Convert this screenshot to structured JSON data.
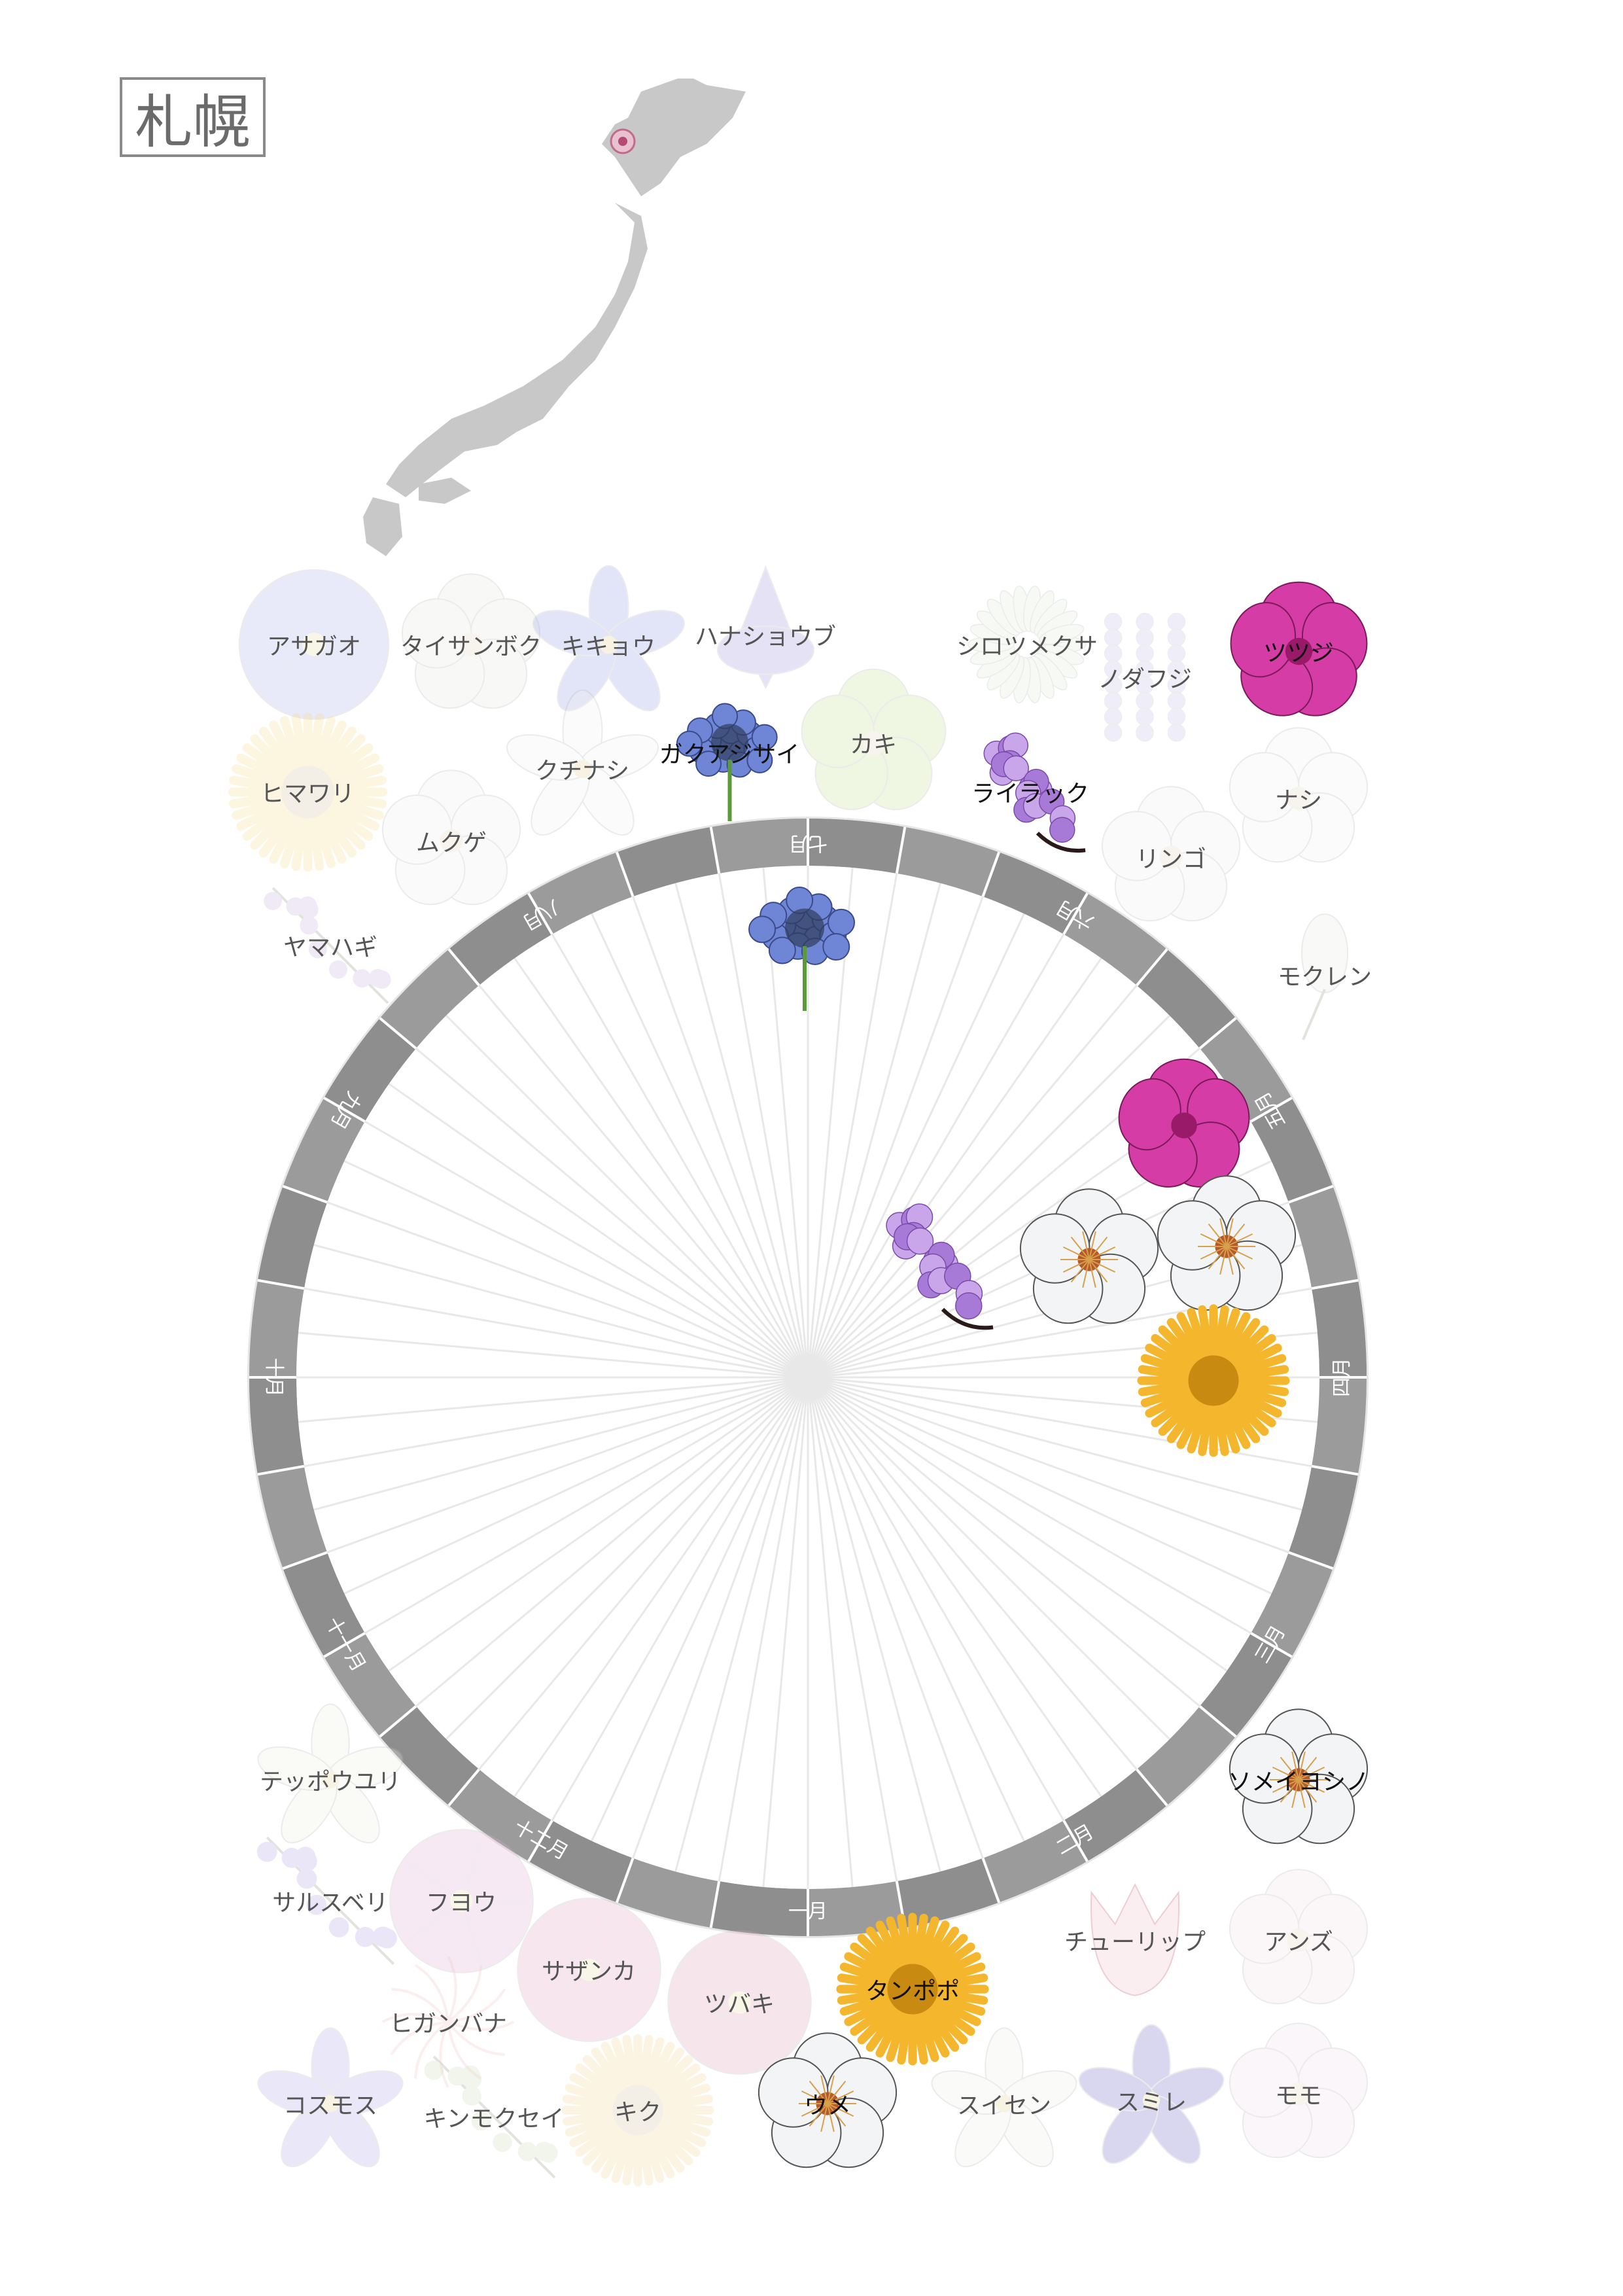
{
  "title": "札幌",
  "wheel": {
    "months": [
      "一月",
      "二月",
      "三月",
      "四月",
      "五月",
      "六月",
      "七月",
      "八月",
      "九月",
      "十月",
      "十一月",
      "十二月"
    ]
  },
  "flowers": [
    {
      "id": "asagao",
      "label": "アサガオ",
      "color": "#aeb4ea",
      "kind": "round",
      "active": false
    },
    {
      "id": "taisanboku",
      "label": "タイサンボク",
      "color": "#e8ece4",
      "kind": "petal",
      "active": false
    },
    {
      "id": "kikyou",
      "label": "キキョウ",
      "color": "#9aa0e6",
      "kind": "star",
      "active": false
    },
    {
      "id": "hanashoubu",
      "label": "ハナショウブ",
      "color": "#a79be0",
      "kind": "iris",
      "active": false
    },
    {
      "id": "shirotsumekusa",
      "label": "シロツメクサ",
      "color": "#e6ecdc",
      "kind": "clover",
      "active": false
    },
    {
      "id": "noda-fuji",
      "label": "ノダフジ",
      "color": "#c9c6e8",
      "kind": "wisteria",
      "active": false
    },
    {
      "id": "tsutsuji",
      "label": "ツツジ",
      "color": "#d63ca6",
      "kind": "azalea",
      "active": true
    },
    {
      "id": "himawari",
      "label": "ヒマワリ",
      "color": "#f7dc8e",
      "kind": "sun",
      "active": false
    },
    {
      "id": "mukuge",
      "label": "ムクゲ",
      "color": "#eef0ee",
      "kind": "petal",
      "active": false
    },
    {
      "id": "kuchinashi",
      "label": "クチナシ",
      "color": "#f0f2ee",
      "kind": "star",
      "active": false
    },
    {
      "id": "gakuajisai",
      "label": "ガクアジサイ",
      "color": "#6f86d6",
      "kind": "hydrangea",
      "active": true
    },
    {
      "id": "kaki",
      "label": "カキ",
      "color": "#c7e49a",
      "kind": "petal",
      "active": false
    },
    {
      "id": "lilac",
      "label": "ライラック",
      "color": "#a77ad8",
      "kind": "lilac",
      "active": true
    },
    {
      "id": "ringo",
      "label": "リンゴ",
      "color": "#eef0f2",
      "kind": "petal",
      "active": false
    },
    {
      "id": "nashi",
      "label": "ナシ",
      "color": "#eef2ee",
      "kind": "petal",
      "active": false
    },
    {
      "id": "yamahagi",
      "label": "ヤマハギ",
      "color": "#c7b5dc",
      "kind": "branch",
      "active": false
    },
    {
      "id": "mokuren",
      "label": "モクレン",
      "color": "#eceee8",
      "kind": "magnolia",
      "active": false
    },
    {
      "id": "teppouyuri",
      "label": "テッポウユリ",
      "color": "#eeeee6",
      "kind": "star",
      "active": false
    },
    {
      "id": "sarusuberi",
      "label": "サルスベリ",
      "color": "#b5a6e4",
      "kind": "branch",
      "active": false
    },
    {
      "id": "fuyou",
      "label": "フヨウ",
      "color": "#e2b3da",
      "kind": "round",
      "active": false
    },
    {
      "id": "sazanka",
      "label": "サザンカ",
      "color": "#e8a7c8",
      "kind": "round",
      "active": false
    },
    {
      "id": "tsubaki",
      "label": "ツバキ",
      "color": "#e6a4bc",
      "kind": "round",
      "active": false
    },
    {
      "id": "tanpopo",
      "label": "タンポポ",
      "color": "#f3b62c",
      "kind": "sun",
      "active": true
    },
    {
      "id": "tulip",
      "label": "チューリップ",
      "color": "#efc4cc",
      "kind": "tulip",
      "active": false
    },
    {
      "id": "anzu",
      "label": "アンズ",
      "color": "#f4e4ea",
      "kind": "petal",
      "active": false
    },
    {
      "id": "somei",
      "label": "ソメイヨシノ",
      "color": "#f2f4f6",
      "kind": "petal",
      "active": true
    },
    {
      "id": "higanbana",
      "label": "ヒガンバナ",
      "color": "#f2c6c6",
      "kind": "spider",
      "active": false
    },
    {
      "id": "cosmos",
      "label": "コスモス",
      "color": "#b7acea",
      "kind": "star",
      "active": false
    },
    {
      "id": "kinmokusei",
      "label": "キンモクセイ",
      "color": "#d3ddb8",
      "kind": "branch",
      "active": false
    },
    {
      "id": "kiku",
      "label": "キク",
      "color": "#f4db9c",
      "kind": "sun",
      "active": false
    },
    {
      "id": "ume",
      "label": "ウメ",
      "color": "#f2f4f6",
      "kind": "petal",
      "active": true
    },
    {
      "id": "suisen",
      "label": "スイセン",
      "color": "#eef0ec",
      "kind": "star",
      "active": false
    },
    {
      "id": "sumire",
      "label": "スミレ",
      "color": "#7a6fc8",
      "kind": "star",
      "active": false
    },
    {
      "id": "momo",
      "label": "モモ",
      "color": "#f0e2ec",
      "kind": "petal",
      "active": false
    }
  ],
  "wheel_flowers": [
    {
      "id": "w-gakuajisai",
      "label": "ガクアジサイ",
      "color": "#6f86d6",
      "kind": "hydrangea"
    },
    {
      "id": "w-tsutsuji",
      "label": "ツツジ",
      "color": "#d63ca6",
      "kind": "azalea"
    },
    {
      "id": "w-lilac",
      "label": "ライラック",
      "color": "#a77ad8",
      "kind": "lilac"
    },
    {
      "id": "w-somei",
      "label": "ソメイヨシノ",
      "color": "#f2f4f6",
      "kind": "petal"
    },
    {
      "id": "w-ume",
      "label": "ウメ",
      "color": "#f2f4f6",
      "kind": "petal"
    },
    {
      "id": "w-tanpopo",
      "label": "タンポポ",
      "color": "#f3b62c",
      "kind": "sun"
    }
  ]
}
